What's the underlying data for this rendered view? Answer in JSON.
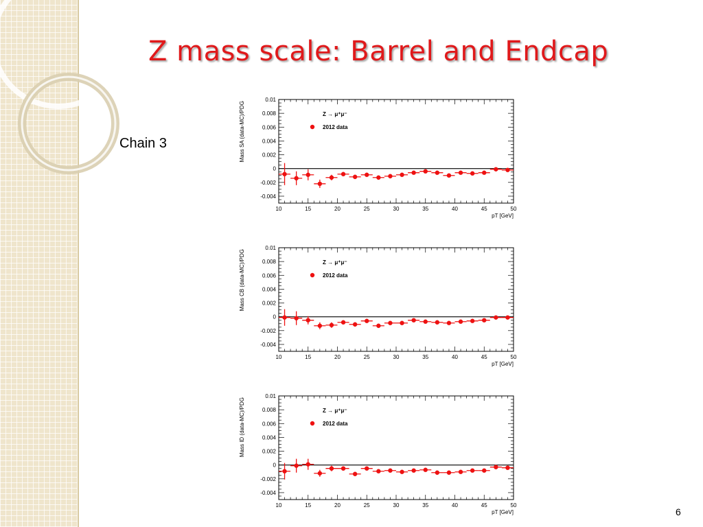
{
  "slide": {
    "title": "Z mass scale:  Barrel and Endcap",
    "chain_label": "Chain 3",
    "page_number": "6"
  },
  "colors": {
    "title": "#e0191b",
    "marker": "#ee1111",
    "sidebar": "#efe5cc"
  },
  "chart_data": [
    {
      "type": "scatter",
      "title": "",
      "xlabel": "pT [GeV]",
      "ylabel": "Mass SA (data-MC)/PDG",
      "xlim": [
        10,
        50
      ],
      "ylim": [
        -0.005,
        0.01
      ],
      "xticks": [
        "10",
        "15",
        "20",
        "25",
        "30",
        "35",
        "40",
        "45",
        "50"
      ],
      "yticks": [
        "0.01",
        "0.008",
        "0.006",
        "0.004",
        "0.002",
        "0",
        "-0.002",
        "-0.004"
      ],
      "legend": {
        "placement": "top-left",
        "process": "Z → μ⁺μ⁻",
        "entry": "2012 data"
      },
      "reference_line": 0,
      "series": [
        {
          "name": "2012 data",
          "x": [
            11,
            13,
            15,
            17,
            19,
            21,
            23,
            25,
            27,
            29,
            31,
            33,
            35,
            37,
            39,
            41,
            43,
            45,
            47,
            49
          ],
          "y": [
            -0.0008,
            -0.0014,
            -0.0009,
            -0.0022,
            -0.0013,
            -0.0008,
            -0.0012,
            -0.0009,
            -0.0013,
            -0.0011,
            -0.0009,
            -0.0006,
            -0.0004,
            -0.0006,
            -0.001,
            -0.0006,
            -0.0007,
            -0.0006,
            -0.0001,
            -0.0002
          ],
          "yerr": [
            0.0016,
            0.001,
            0.0008,
            0.0006,
            0.0004,
            0.0003,
            0.0003,
            0.0002,
            0.0002,
            0.0002,
            0.0002,
            0.0002,
            0.0002,
            0.0002,
            0.0002,
            0.0002,
            0.0002,
            0.0002,
            0.0002,
            0.0002
          ],
          "xerr": 1
        }
      ]
    },
    {
      "type": "scatter",
      "title": "",
      "xlabel": "pT [GeV]",
      "ylabel": "Mass CB (data-MC)/PDG",
      "xlim": [
        10,
        50
      ],
      "ylim": [
        -0.005,
        0.01
      ],
      "xticks": [
        "10",
        "15",
        "20",
        "25",
        "30",
        "35",
        "40",
        "45",
        "50"
      ],
      "yticks": [
        "0.01",
        "0.008",
        "0.006",
        "0.004",
        "0.002",
        "0",
        "-0.002",
        "-0.004"
      ],
      "legend": {
        "placement": "top-left",
        "process": "Z → μ⁺μ⁻",
        "entry": "2012 data"
      },
      "reference_line": 0,
      "series": [
        {
          "name": "2012 data",
          "x": [
            11,
            13,
            15,
            17,
            19,
            21,
            23,
            25,
            27,
            29,
            31,
            33,
            35,
            37,
            39,
            41,
            43,
            45,
            47,
            49
          ],
          "y": [
            -0.0001,
            -0.0002,
            -0.0005,
            -0.0013,
            -0.0012,
            -0.0008,
            -0.0011,
            -0.0006,
            -0.0013,
            -0.0009,
            -0.0009,
            -0.0005,
            -0.0007,
            -0.0008,
            -0.0009,
            -0.0007,
            -0.0006,
            -0.0005,
            -0.0001,
            -0.0001
          ],
          "yerr": [
            0.0012,
            0.001,
            0.0006,
            0.0005,
            0.0004,
            0.0003,
            0.0003,
            0.0002,
            0.0002,
            0.0002,
            0.0002,
            0.0002,
            0.0002,
            0.0002,
            0.0002,
            0.0002,
            0.0002,
            0.0002,
            0.0002,
            0.0002
          ],
          "xerr": 1
        }
      ]
    },
    {
      "type": "scatter",
      "title": "",
      "xlabel": "pT [GeV]",
      "ylabel": "Mass ID (data-MC)/PDG",
      "xlim": [
        10,
        50
      ],
      "ylim": [
        -0.005,
        0.01
      ],
      "xticks": [
        "10",
        "15",
        "20",
        "25",
        "30",
        "35",
        "40",
        "45",
        "50"
      ],
      "yticks": [
        "0.01",
        "0.008",
        "0.006",
        "0.004",
        "0.002",
        "0",
        "-0.002",
        "-0.004"
      ],
      "legend": {
        "placement": "top-left",
        "process": "Z → μ⁺μ⁻",
        "entry": "2012 data"
      },
      "reference_line": 0,
      "series": [
        {
          "name": "2012 data",
          "x": [
            11,
            13,
            15,
            17,
            19,
            21,
            23,
            25,
            27,
            29,
            31,
            33,
            35,
            37,
            39,
            41,
            43,
            45,
            47,
            49
          ],
          "y": [
            -0.0009,
            -0.0001,
            0.0001,
            -0.0012,
            -0.0005,
            -0.0005,
            -0.0013,
            -0.0005,
            -0.0009,
            -0.0008,
            -0.001,
            -0.0008,
            -0.0007,
            -0.0011,
            -0.0011,
            -0.001,
            -0.0008,
            -0.0008,
            -0.0003,
            -0.0004
          ],
          "yerr": [
            0.0012,
            0.001,
            0.0008,
            0.0005,
            0.0004,
            0.0003,
            0.0003,
            0.0002,
            0.0002,
            0.0002,
            0.0002,
            0.0002,
            0.0002,
            0.0002,
            0.0002,
            0.0002,
            0.0002,
            0.0002,
            0.0002,
            0.0002
          ],
          "xerr": 1
        }
      ]
    }
  ]
}
